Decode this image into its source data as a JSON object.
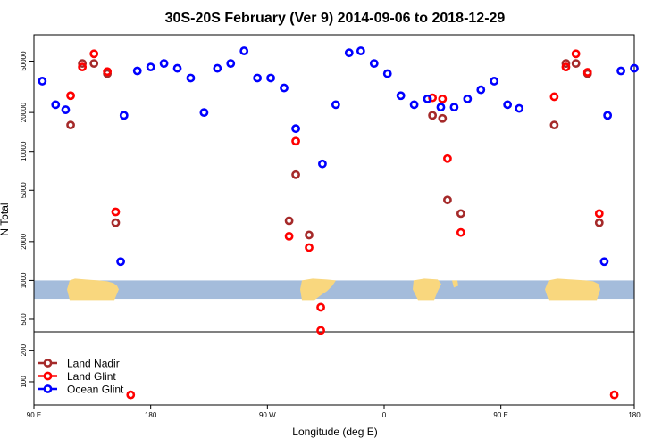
{
  "chart_data": {
    "type": "scatter",
    "title": "30S-20S February (Ver 9)   2014-09-06 to 2018-12-29",
    "xlabel": "Longitude (deg E)",
    "ylabel": "N Total",
    "yscale": "log",
    "xlim": [
      90,
      450
    ],
    "ylim_upper": [
      400,
      80000
    ],
    "ylim_lower": [
      60,
      300
    ],
    "x_ticks": [
      {
        "value": 90,
        "label": "90 E"
      },
      {
        "value": 160,
        "label": "180"
      },
      {
        "value": 230,
        "label": "90 W"
      },
      {
        "value": 300,
        "label": "0"
      },
      {
        "value": 370,
        "label": "90 E"
      },
      {
        "value": 450,
        "label": "180"
      }
    ],
    "y_ticks_upper": [
      500,
      1000,
      2000,
      5000,
      10000,
      20000,
      50000
    ],
    "y_ticks_lower": [
      100,
      200
    ],
    "grid": false,
    "legend_position": "bottom-left",
    "colors": {
      "land_nadir": "#a52a2a",
      "land_glint": "#ff0000",
      "ocean_glint": "#0000ff",
      "ocean_band": "#a4bcdb",
      "land_band": "#f9d77e"
    },
    "series": [
      {
        "name": "Land Nadir",
        "color": "#a52a2a",
        "points": [
          {
            "x": 112,
            "y": 16000
          },
          {
            "x": 119,
            "y": 48000
          },
          {
            "x": 126,
            "y": 48000
          },
          {
            "x": 134,
            "y": 40000
          },
          {
            "x": 139,
            "y": 2800
          },
          {
            "x": 243,
            "y": 2900
          },
          {
            "x": 247,
            "y": 6600
          },
          {
            "x": 255,
            "y": 2250
          },
          {
            "x": 329,
            "y": 19000
          },
          {
            "x": 335,
            "y": 18000
          },
          {
            "x": 338,
            "y": 4200
          },
          {
            "x": 346,
            "y": 3300
          },
          {
            "x": 402,
            "y": 16000
          },
          {
            "x": 409,
            "y": 48000
          },
          {
            "x": 415,
            "y": 48000
          },
          {
            "x": 422,
            "y": 40000
          },
          {
            "x": 429,
            "y": 2800
          }
        ]
      },
      {
        "name": "Land Glint",
        "color": "#ff0000",
        "points": [
          {
            "x": 112,
            "y": 27000
          },
          {
            "x": 119,
            "y": 45000
          },
          {
            "x": 126,
            "y": 57000
          },
          {
            "x": 134,
            "y": 41500
          },
          {
            "x": 139,
            "y": 3400
          },
          {
            "x": 148,
            "y": 75
          },
          {
            "x": 243,
            "y": 2200
          },
          {
            "x": 247,
            "y": 12000
          },
          {
            "x": 255,
            "y": 1800
          },
          {
            "x": 262,
            "y": 620
          },
          {
            "x": 262,
            "y": 410
          },
          {
            "x": 329,
            "y": 26000
          },
          {
            "x": 335,
            "y": 25500
          },
          {
            "x": 338,
            "y": 8800
          },
          {
            "x": 346,
            "y": 2350
          },
          {
            "x": 402,
            "y": 26500
          },
          {
            "x": 409,
            "y": 45000
          },
          {
            "x": 415,
            "y": 57000
          },
          {
            "x": 422,
            "y": 41000
          },
          {
            "x": 429,
            "y": 3300
          },
          {
            "x": 438,
            "y": 75
          }
        ]
      },
      {
        "name": "Ocean Glint",
        "color": "#0000ff",
        "points": [
          {
            "x": 95,
            "y": 35000
          },
          {
            "x": 103,
            "y": 23000
          },
          {
            "x": 109,
            "y": 21000
          },
          {
            "x": 142,
            "y": 1400
          },
          {
            "x": 144,
            "y": 19000
          },
          {
            "x": 152,
            "y": 42000
          },
          {
            "x": 160,
            "y": 45000
          },
          {
            "x": 168,
            "y": 48000
          },
          {
            "x": 176,
            "y": 44000
          },
          {
            "x": 184,
            "y": 37000
          },
          {
            "x": 192,
            "y": 20000
          },
          {
            "x": 200,
            "y": 44000
          },
          {
            "x": 208,
            "y": 48000
          },
          {
            "x": 216,
            "y": 60000
          },
          {
            "x": 224,
            "y": 37000
          },
          {
            "x": 232,
            "y": 37000
          },
          {
            "x": 240,
            "y": 31000
          },
          {
            "x": 247,
            "y": 15000
          },
          {
            "x": 263,
            "y": 8000
          },
          {
            "x": 271,
            "y": 23000
          },
          {
            "x": 279,
            "y": 58000
          },
          {
            "x": 286,
            "y": 60000
          },
          {
            "x": 294,
            "y": 48000
          },
          {
            "x": 302,
            "y": 40000
          },
          {
            "x": 310,
            "y": 27000
          },
          {
            "x": 318,
            "y": 23000
          },
          {
            "x": 326,
            "y": 25500
          },
          {
            "x": 334,
            "y": 22000
          },
          {
            "x": 342,
            "y": 22000
          },
          {
            "x": 350,
            "y": 25500
          },
          {
            "x": 358,
            "y": 30000
          },
          {
            "x": 366,
            "y": 35000
          },
          {
            "x": 374,
            "y": 23000
          },
          {
            "x": 381,
            "y": 21500
          },
          {
            "x": 432,
            "y": 1400
          },
          {
            "x": 434,
            "y": 19000
          },
          {
            "x": 442,
            "y": 42000
          },
          {
            "x": 450,
            "y": 44000
          }
        ]
      }
    ]
  }
}
